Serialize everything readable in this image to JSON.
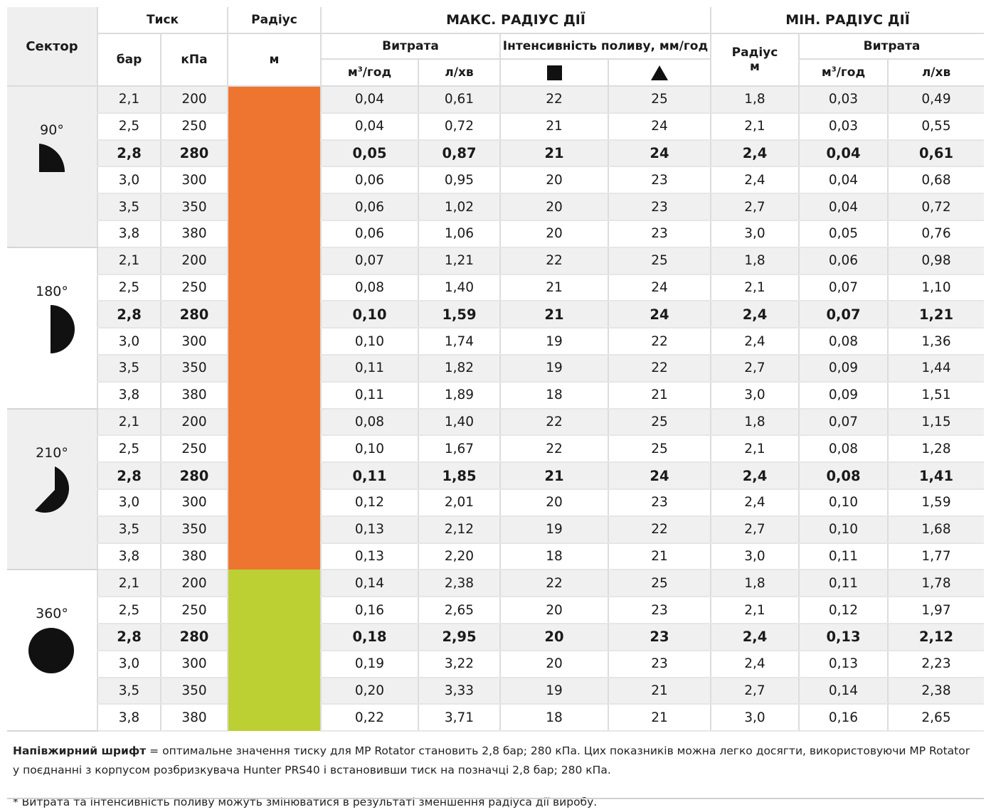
{
  "header": {
    "sector": "Сектор",
    "pressure": "Тиск",
    "radius": "Радіус",
    "max_title": "МАКС. РАДІУС ДІЇ",
    "min_title": "МІН. РАДІУС ДІЇ",
    "bar": "бар",
    "kpa": "кПа",
    "m": "м",
    "flow": "Витрата",
    "intensity": "Інтенсивність поливу, мм/год",
    "radius2": "Радіус",
    "m2": "м",
    "flow2": "Витрата",
    "m3_base": "м",
    "m3_sup": "3",
    "m3_rest": "/год",
    "l_min": "л/хв",
    "m3b_base": "м",
    "m3b_sup": "3",
    "m3b_rest": "/год",
    "l_min2": "л/хв",
    "square_icon": "square-icon",
    "triangle_icon": "triangle-icon"
  },
  "colors": {
    "orange": "#ee7530",
    "green": "#bccf33",
    "row_shade": "#f0f0f0",
    "sector_shade": "#efefef"
  },
  "sectors": [
    {
      "label": "90°",
      "icon": "quarter-circle-icon",
      "swatch": "orange",
      "rows": [
        {
          "bar": "2,1",
          "kpa": "200",
          "q": "0,04",
          "l": "0,61",
          "isq": "22",
          "itr": "25",
          "r": "1,8",
          "q2": "0,03",
          "l2": "0,49",
          "bold": false
        },
        {
          "bar": "2,5",
          "kpa": "250",
          "q": "0,04",
          "l": "0,72",
          "isq": "21",
          "itr": "24",
          "r": "2,1",
          "q2": "0,03",
          "l2": "0,55",
          "bold": false
        },
        {
          "bar": "2,8",
          "kpa": "280",
          "q": "0,05",
          "l": "0,87",
          "isq": "21",
          "itr": "24",
          "r": "2,4",
          "q2": "0,04",
          "l2": "0,61",
          "bold": true
        },
        {
          "bar": "3,0",
          "kpa": "300",
          "q": "0,06",
          "l": "0,95",
          "isq": "20",
          "itr": "23",
          "r": "2,4",
          "q2": "0,04",
          "l2": "0,68",
          "bold": false
        },
        {
          "bar": "3,5",
          "kpa": "350",
          "q": "0,06",
          "l": "1,02",
          "isq": "20",
          "itr": "23",
          "r": "2,7",
          "q2": "0,04",
          "l2": "0,72",
          "bold": false
        },
        {
          "bar": "3,8",
          "kpa": "380",
          "q": "0,06",
          "l": "1,06",
          "isq": "20",
          "itr": "23",
          "r": "3,0",
          "q2": "0,05",
          "l2": "0,76",
          "bold": false
        }
      ]
    },
    {
      "label": "180°",
      "icon": "half-circle-icon",
      "swatch": "orange",
      "rows": [
        {
          "bar": "2,1",
          "kpa": "200",
          "q": "0,07",
          "l": "1,21",
          "isq": "22",
          "itr": "25",
          "r": "1,8",
          "q2": "0,06",
          "l2": "0,98",
          "bold": false
        },
        {
          "bar": "2,5",
          "kpa": "250",
          "q": "0,08",
          "l": "1,40",
          "isq": "21",
          "itr": "24",
          "r": "2,1",
          "q2": "0,07",
          "l2": "1,10",
          "bold": false
        },
        {
          "bar": "2,8",
          "kpa": "280",
          "q": "0,10",
          "l": "1,59",
          "isq": "21",
          "itr": "24",
          "r": "2,4",
          "q2": "0,07",
          "l2": "1,21",
          "bold": true
        },
        {
          "bar": "3,0",
          "kpa": "300",
          "q": "0,10",
          "l": "1,74",
          "isq": "19",
          "itr": "22",
          "r": "2,4",
          "q2": "0,08",
          "l2": "1,36",
          "bold": false
        },
        {
          "bar": "3,5",
          "kpa": "350",
          "q": "0,11",
          "l": "1,82",
          "isq": "19",
          "itr": "22",
          "r": "2,7",
          "q2": "0,09",
          "l2": "1,44",
          "bold": false
        },
        {
          "bar": "3,8",
          "kpa": "380",
          "q": "0,11",
          "l": "1,89",
          "isq": "18",
          "itr": "21",
          "r": "3,0",
          "q2": "0,09",
          "l2": "1,51",
          "bold": false
        }
      ]
    },
    {
      "label": "210°",
      "icon": "210-degree-sector-icon",
      "swatch": "orange",
      "rows": [
        {
          "bar": "2,1",
          "kpa": "200",
          "q": "0,08",
          "l": "1,40",
          "isq": "22",
          "itr": "25",
          "r": "1,8",
          "q2": "0,07",
          "l2": "1,15",
          "bold": false
        },
        {
          "bar": "2,5",
          "kpa": "250",
          "q": "0,10",
          "l": "1,67",
          "isq": "22",
          "itr": "25",
          "r": "2,1",
          "q2": "0,08",
          "l2": "1,28",
          "bold": false
        },
        {
          "bar": "2,8",
          "kpa": "280",
          "q": "0,11",
          "l": "1,85",
          "isq": "21",
          "itr": "24",
          "r": "2,4",
          "q2": "0,08",
          "l2": "1,41",
          "bold": true
        },
        {
          "bar": "3,0",
          "kpa": "300",
          "q": "0,12",
          "l": "2,01",
          "isq": "20",
          "itr": "23",
          "r": "2,4",
          "q2": "0,10",
          "l2": "1,59",
          "bold": false
        },
        {
          "bar": "3,5",
          "kpa": "350",
          "q": "0,13",
          "l": "2,12",
          "isq": "19",
          "itr": "22",
          "r": "2,7",
          "q2": "0,10",
          "l2": "1,68",
          "bold": false
        },
        {
          "bar": "3,8",
          "kpa": "380",
          "q": "0,13",
          "l": "2,20",
          "isq": "18",
          "itr": "21",
          "r": "3,0",
          "q2": "0,11",
          "l2": "1,77",
          "bold": false
        }
      ]
    },
    {
      "label": "360°",
      "icon": "full-circle-icon",
      "swatch": "green",
      "rows": [
        {
          "bar": "2,1",
          "kpa": "200",
          "q": "0,14",
          "l": "2,38",
          "isq": "22",
          "itr": "25",
          "r": "1,8",
          "q2": "0,11",
          "l2": "1,78",
          "bold": false
        },
        {
          "bar": "2,5",
          "kpa": "250",
          "q": "0,16",
          "l": "2,65",
          "isq": "20",
          "itr": "23",
          "r": "2,1",
          "q2": "0,12",
          "l2": "1,97",
          "bold": false
        },
        {
          "bar": "2,8",
          "kpa": "280",
          "q": "0,18",
          "l": "2,95",
          "isq": "20",
          "itr": "23",
          "r": "2,4",
          "q2": "0,13",
          "l2": "2,12",
          "bold": true
        },
        {
          "bar": "3,0",
          "kpa": "300",
          "q": "0,19",
          "l": "3,22",
          "isq": "20",
          "itr": "23",
          "r": "2,4",
          "q2": "0,13",
          "l2": "2,23",
          "bold": false
        },
        {
          "bar": "3,5",
          "kpa": "350",
          "q": "0,20",
          "l": "3,33",
          "isq": "19",
          "itr": "21",
          "r": "2,7",
          "q2": "0,14",
          "l2": "2,38",
          "bold": false
        },
        {
          "bar": "3,8",
          "kpa": "380",
          "q": "0,22",
          "l": "3,71",
          "isq": "18",
          "itr": "21",
          "r": "3,0",
          "q2": "0,16",
          "l2": "2,65",
          "bold": false
        }
      ]
    }
  ],
  "notes": {
    "bold_lead": "Напівжирний шрифт",
    "main_text": " = оптимальне значення тиску для MP Rotator становить 2,8 бар; 280 кПа. Цих показників можна легко досягти, використовуючи MP Rotator у поєднанні з корпусом розбризкувача Hunter PRS40 і встановивши тиск на позначці 2,8 бар; 280 кПа.",
    "footnote": "* Витрата та інтенсивність поливу можуть змінюватися в результаті зменшення радіуса дії виробу."
  }
}
